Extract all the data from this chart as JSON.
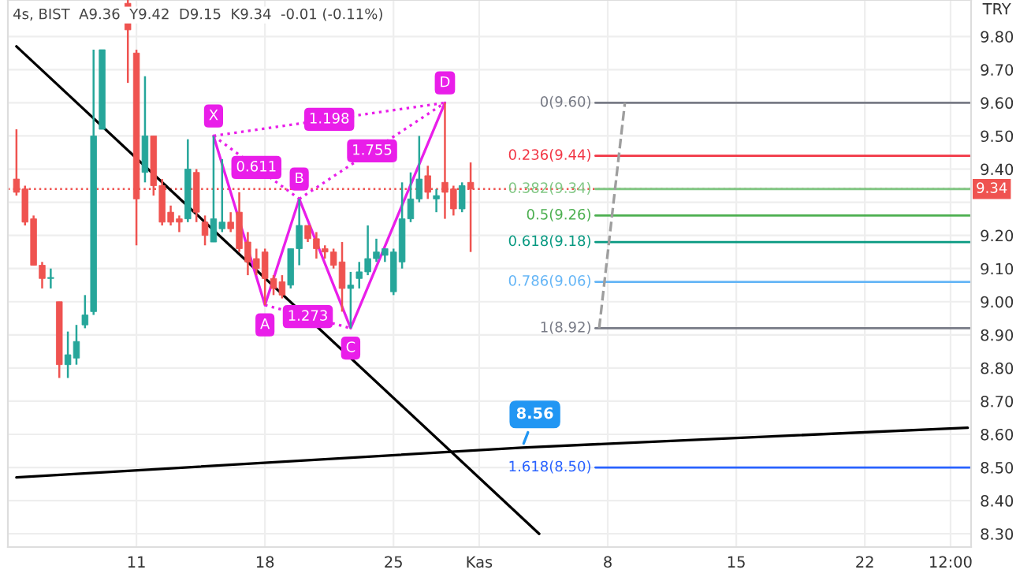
{
  "chart_data": {
    "type": "candlestick",
    "title": "4s, BIST  A9.36  Y9.42  D9.15  K9.34  -0.01 (-0.11%)",
    "ylabel": "TRY",
    "categories": [
      null,
      null,
      null,
      null,
      null,
      null,
      null,
      null,
      null,
      null,
      null,
      null,
      null,
      null,
      "11",
      null,
      null,
      null,
      null,
      null,
      null,
      null,
      null,
      null,
      null,
      null,
      null,
      null,
      null,
      "18",
      null,
      null,
      null,
      null,
      null,
      null,
      null,
      null,
      null,
      null,
      null,
      null,
      null,
      null,
      "25",
      null,
      null,
      null,
      null,
      null,
      null,
      null,
      null,
      null,
      "Kas",
      null,
      null,
      null,
      null,
      null,
      null,
      null,
      null,
      null,
      null,
      null,
      null,
      null,
      null,
      "8",
      null,
      null,
      null,
      null,
      null,
      null,
      null,
      null,
      null,
      null,
      null,
      null,
      null,
      null,
      "15",
      null,
      null,
      null,
      null,
      null,
      null,
      null,
      null,
      null,
      null,
      null,
      null,
      null,
      null,
      "22",
      null,
      null,
      null,
      null,
      null,
      null,
      null,
      null,
      null,
      "12:00",
      null,
      null
    ],
    "ohlc": [
      [
        9.37,
        9.52,
        9.32,
        9.33
      ],
      [
        9.34,
        9.35,
        9.23,
        9.24
      ],
      [
        9.25,
        9.26,
        9.11,
        9.11
      ],
      [
        9.11,
        9.12,
        9.04,
        9.07
      ],
      [
        9.07,
        9.1,
        9.04,
        9.07
      ],
      [
        9.0,
        9.0,
        8.77,
        8.81
      ],
      [
        8.81,
        8.91,
        8.77,
        8.84
      ],
      [
        8.83,
        8.93,
        8.81,
        8.88
      ],
      [
        8.93,
        9.02,
        8.92,
        8.96
      ],
      [
        8.97,
        9.76,
        8.96,
        9.5
      ],
      [
        9.52,
        9.76,
        9.52,
        9.76
      ],
      null,
      null,
      [
        9.9,
        9.91,
        9.66,
        9.82
      ],
      [
        9.75,
        9.76,
        9.17,
        9.31
      ],
      [
        9.39,
        9.68,
        9.36,
        9.5
      ],
      [
        9.5,
        9.5,
        9.32,
        9.35
      ],
      [
        9.35,
        9.37,
        9.23,
        9.24
      ],
      [
        9.27,
        9.29,
        9.23,
        9.24
      ],
      [
        9.25,
        9.26,
        9.21,
        9.24
      ],
      [
        9.25,
        9.49,
        9.24,
        9.4
      ],
      [
        9.39,
        9.4,
        9.24,
        9.27
      ],
      [
        9.24,
        9.26,
        9.17,
        9.2
      ],
      [
        9.18,
        9.5,
        9.18,
        9.25
      ],
      [
        9.22,
        9.43,
        9.21,
        9.24
      ],
      [
        9.24,
        9.27,
        9.21,
        9.22
      ],
      [
        9.27,
        9.33,
        9.15,
        9.16
      ],
      [
        9.18,
        9.21,
        9.08,
        9.12
      ],
      [
        9.13,
        9.16,
        9.08,
        9.1
      ],
      [
        9.15,
        9.16,
        8.99,
        9.07
      ],
      [
        9.07,
        9.08,
        9.02,
        9.04
      ],
      [
        9.06,
        9.08,
        9.01,
        9.02
      ],
      [
        9.05,
        9.16,
        9.04,
        9.16
      ],
      [
        9.16,
        9.31,
        9.11,
        9.23
      ],
      [
        9.23,
        9.23,
        9.18,
        9.19
      ],
      [
        9.19,
        9.21,
        9.13,
        9.16
      ],
      [
        9.16,
        9.17,
        9.13,
        9.15
      ],
      [
        9.15,
        9.16,
        9.1,
        9.11
      ],
      [
        9.12,
        9.18,
        8.97,
        9.04
      ],
      [
        9.04,
        9.09,
        8.92,
        9.05
      ],
      [
        9.07,
        9.12,
        9.04,
        9.09
      ],
      [
        9.09,
        9.23,
        9.08,
        9.13
      ],
      [
        9.13,
        9.19,
        9.12,
        9.15
      ],
      [
        9.14,
        9.16,
        9.12,
        9.16
      ],
      [
        9.03,
        9.16,
        9.02,
        9.15
      ],
      [
        9.12,
        9.36,
        9.1,
        9.25
      ],
      [
        9.25,
        9.39,
        9.24,
        9.31
      ],
      [
        9.31,
        9.5,
        9.3,
        9.37
      ],
      [
        9.38,
        9.41,
        9.31,
        9.33
      ],
      [
        9.31,
        9.34,
        9.27,
        9.32
      ],
      [
        9.36,
        9.6,
        9.25,
        9.33
      ],
      [
        9.34,
        9.35,
        9.26,
        9.28
      ],
      [
        9.28,
        9.36,
        9.27,
        9.35
      ],
      [
        9.36,
        9.42,
        9.15,
        9.34
      ],
      null,
      null,
      null,
      null,
      null,
      null,
      null,
      null,
      null,
      null,
      null,
      null,
      null,
      null,
      null,
      null,
      null,
      null,
      null,
      null,
      null,
      null,
      null,
      null,
      null,
      null,
      null,
      null,
      null,
      null,
      null,
      null,
      null,
      null,
      null,
      null,
      null,
      null,
      null,
      null,
      null,
      null,
      null,
      null,
      null,
      null,
      null,
      null,
      null,
      null,
      null,
      null,
      null,
      null,
      null,
      null,
      null,
      null
    ],
    "series": [
      {
        "type": "line",
        "color": "#000000",
        "values": [
          9.77,
          null,
          null,
          null,
          null,
          null,
          null,
          null,
          null,
          null,
          null,
          null,
          null,
          null,
          null,
          null,
          null,
          null,
          null,
          null,
          null,
          null,
          null,
          null,
          null,
          null,
          null,
          null,
          null,
          null,
          null,
          null,
          null,
          null,
          null,
          null,
          null,
          null,
          null,
          null,
          null,
          null,
          null,
          null,
          null,
          null,
          null,
          null,
          null,
          null,
          null,
          null,
          null,
          null,
          null,
          null,
          null,
          null,
          null,
          null,
          null,
          8.3,
          null,
          null,
          null,
          null,
          null,
          null,
          null,
          null,
          null,
          null,
          null,
          null,
          null,
          null,
          null,
          null,
          null,
          null,
          null,
          null,
          null,
          null,
          null,
          null,
          null,
          null,
          null,
          null,
          null,
          null,
          null,
          null,
          null,
          null,
          null,
          null,
          null,
          null,
          null,
          null,
          null,
          null,
          null,
          null,
          null,
          null,
          null,
          null,
          null,
          null
        ]
      },
      {
        "type": "line",
        "color": "#000000",
        "values": [
          8.47,
          null,
          null,
          null,
          null,
          null,
          null,
          null,
          null,
          null,
          null,
          null,
          null,
          null,
          null,
          null,
          null,
          null,
          null,
          null,
          null,
          null,
          null,
          null,
          null,
          null,
          null,
          null,
          null,
          null,
          null,
          null,
          null,
          null,
          null,
          null,
          null,
          null,
          null,
          null,
          null,
          null,
          null,
          null,
          null,
          null,
          null,
          null,
          null,
          null,
          null,
          null,
          null,
          null,
          null,
          null,
          null,
          null,
          null,
          8.56,
          null,
          null,
          null,
          null,
          null,
          null,
          null,
          null,
          null,
          null,
          null,
          null,
          null,
          null,
          null,
          null,
          null,
          null,
          null,
          null,
          null,
          null,
          null,
          null,
          null,
          null,
          null,
          null,
          null,
          null,
          null,
          null,
          null,
          null,
          null,
          null,
          null,
          null,
          null,
          null,
          null,
          null,
          null,
          null,
          null,
          null,
          null,
          null,
          null,
          null,
          null,
          8.62
        ],
        "value_labels": [
          null,
          null,
          null,
          null,
          null,
          null,
          null,
          null,
          null,
          null,
          null,
          null,
          null,
          null,
          null,
          null,
          null,
          null,
          null,
          null,
          null,
          null,
          null,
          null,
          null,
          null,
          null,
          null,
          null,
          null,
          null,
          null,
          null,
          null,
          null,
          null,
          null,
          null,
          null,
          null,
          null,
          null,
          null,
          null,
          null,
          null,
          null,
          null,
          null,
          null,
          null,
          null,
          null,
          null,
          null,
          null,
          null,
          null,
          null,
          "8.56",
          null,
          null,
          null,
          null,
          null,
          null,
          null,
          null,
          null,
          null,
          null,
          null,
          null,
          null,
          null,
          null,
          null,
          null,
          null,
          null,
          null,
          null,
          null,
          null,
          null,
          null,
          null,
          null,
          null,
          null,
          null,
          null,
          null,
          null,
          null,
          null,
          null,
          null,
          null,
          null,
          null,
          null,
          null,
          null,
          null,
          null,
          null,
          null,
          null,
          null,
          null,
          null
        ]
      },
      {
        "type": "line",
        "color": "#e91ee9",
        "values": [
          null,
          null,
          null,
          null,
          null,
          null,
          null,
          null,
          null,
          null,
          null,
          null,
          null,
          null,
          null,
          null,
          null,
          null,
          null,
          null,
          null,
          null,
          null,
          9.5,
          null,
          null,
          null,
          null,
          null,
          8.99,
          null,
          null,
          null,
          9.31,
          null,
          null,
          null,
          null,
          null,
          8.92,
          null,
          null,
          null,
          null,
          null,
          null,
          null,
          null,
          null,
          null,
          9.6,
          null,
          null,
          null,
          null,
          null,
          null,
          null,
          null,
          null,
          null,
          null,
          null,
          null,
          null,
          null,
          null,
          null,
          null,
          null,
          null,
          null,
          null,
          null,
          null,
          null,
          null,
          null,
          null,
          null,
          null,
          null,
          null,
          null,
          null,
          null,
          null,
          null,
          null,
          null,
          null,
          null,
          null,
          null,
          null,
          null,
          null,
          null,
          null,
          null,
          null,
          null,
          null,
          null,
          null,
          null,
          null,
          null,
          null,
          null,
          null,
          null
        ],
        "value_labels": [
          null,
          null,
          null,
          null,
          null,
          null,
          null,
          null,
          null,
          null,
          null,
          null,
          null,
          null,
          null,
          null,
          null,
          null,
          null,
          null,
          null,
          null,
          null,
          "X",
          null,
          null,
          null,
          null,
          null,
          "A",
          null,
          null,
          null,
          "B",
          null,
          null,
          null,
          null,
          null,
          "C",
          null,
          null,
          null,
          null,
          null,
          null,
          null,
          null,
          null,
          null,
          "D",
          null,
          null,
          null,
          null,
          null,
          null,
          null,
          null,
          null,
          null,
          null,
          null,
          null,
          null,
          null,
          null,
          null,
          null,
          null,
          null,
          null,
          null,
          null,
          null,
          null,
          null,
          null,
          null,
          null,
          null,
          null,
          null,
          null,
          null,
          null,
          null,
          null,
          null,
          null,
          null,
          null,
          null,
          null,
          null,
          null,
          null,
          null,
          null,
          null,
          null,
          null,
          null,
          null,
          null,
          null,
          null,
          null,
          null,
          null,
          null,
          null
        ]
      },
      {
        "type": "line",
        "color": "#e91ee9",
        "line_style": "dotted",
        "values": [
          null,
          null,
          null,
          null,
          null,
          null,
          null,
          null,
          null,
          null,
          null,
          null,
          null,
          null,
          null,
          null,
          null,
          null,
          null,
          null,
          null,
          null,
          null,
          9.5,
          null,
          null,
          null,
          null,
          null,
          null,
          null,
          null,
          null,
          9.31,
          null,
          null,
          null,
          null,
          null,
          null,
          null,
          null,
          null,
          null,
          null,
          null,
          null,
          null,
          null,
          null,
          null,
          null,
          null,
          null,
          null,
          null,
          null,
          null,
          null,
          null,
          null,
          null,
          null,
          null,
          null,
          null,
          null,
          null,
          null,
          null,
          null,
          null,
          null,
          null,
          null,
          null,
          null,
          null,
          null,
          null,
          null,
          null,
          null,
          null,
          null,
          null,
          null,
          null,
          null,
          null,
          null,
          null,
          null,
          null,
          null,
          null,
          null,
          null,
          null,
          null,
          null,
          null,
          null,
          null,
          null,
          null,
          null,
          null,
          null,
          null,
          null,
          null
        ]
      },
      {
        "type": "line",
        "color": "#e91ee9",
        "line_style": "dotted",
        "values": [
          null,
          null,
          null,
          null,
          null,
          null,
          null,
          null,
          null,
          null,
          null,
          null,
          null,
          null,
          null,
          null,
          null,
          null,
          null,
          null,
          null,
          null,
          null,
          null,
          null,
          null,
          null,
          null,
          null,
          8.99,
          null,
          null,
          null,
          null,
          null,
          null,
          null,
          null,
          null,
          8.92,
          null,
          null,
          null,
          null,
          null,
          null,
          null,
          null,
          null,
          null,
          null,
          null,
          null,
          null,
          null,
          null,
          null,
          null,
          null,
          null,
          null,
          null,
          null,
          null,
          null,
          null,
          null,
          null,
          null,
          null,
          null,
          null,
          null,
          null,
          null,
          null,
          null,
          null,
          null,
          null,
          null,
          null,
          null,
          null,
          null,
          null,
          null,
          null,
          null,
          null,
          null,
          null,
          null,
          null,
          null,
          null,
          null,
          null,
          null,
          null,
          null,
          null,
          null,
          null,
          null,
          null,
          null,
          null,
          null,
          null,
          null,
          null
        ]
      },
      {
        "type": "line",
        "color": "#e91ee9",
        "line_style": "dotted",
        "values": [
          null,
          null,
          null,
          null,
          null,
          null,
          null,
          null,
          null,
          null,
          null,
          null,
          null,
          null,
          null,
          null,
          null,
          null,
          null,
          null,
          null,
          null,
          null,
          null,
          null,
          null,
          null,
          null,
          null,
          null,
          null,
          null,
          null,
          9.31,
          null,
          null,
          null,
          null,
          null,
          null,
          null,
          null,
          null,
          null,
          null,
          null,
          null,
          null,
          null,
          null,
          9.6,
          null,
          null,
          null,
          null,
          null,
          null,
          null,
          null,
          null,
          null,
          null,
          null,
          null,
          null,
          null,
          null,
          null,
          null,
          null,
          null,
          null,
          null,
          null,
          null,
          null,
          null,
          null,
          null,
          null,
          null,
          null,
          null,
          null,
          null,
          null,
          null,
          null,
          null,
          null,
          null,
          null,
          null,
          null,
          null,
          null,
          null,
          null,
          null,
          null,
          null,
          null,
          null,
          null,
          null,
          null,
          null,
          null,
          null,
          null,
          null,
          null
        ]
      },
      {
        "type": "line",
        "color": "#e91ee9",
        "line_style": "dotted",
        "values": [
          null,
          null,
          null,
          null,
          null,
          null,
          null,
          null,
          null,
          null,
          null,
          null,
          null,
          null,
          null,
          null,
          null,
          null,
          null,
          null,
          null,
          null,
          null,
          9.5,
          null,
          null,
          null,
          null,
          null,
          null,
          null,
          null,
          null,
          null,
          null,
          null,
          null,
          null,
          null,
          null,
          null,
          null,
          null,
          null,
          null,
          null,
          null,
          null,
          null,
          null,
          9.6,
          null,
          null,
          null,
          null,
          null,
          null,
          null,
          null,
          null,
          null,
          null,
          null,
          null,
          null,
          null,
          null,
          null,
          null,
          null,
          null,
          null,
          null,
          null,
          null,
          null,
          null,
          null,
          null,
          null,
          null,
          null,
          null,
          null,
          null,
          null,
          null,
          null,
          null,
          null,
          null,
          null,
          null,
          null,
          null,
          null,
          null,
          null,
          null,
          null,
          null,
          null,
          null,
          null,
          null,
          null,
          null,
          null,
          null,
          null,
          null,
          null
        ]
      },
      {
        "type": "line",
        "color": "#9e9e9e",
        "line_style": "dashed",
        "values": [
          null,
          null,
          null,
          null,
          null,
          null,
          null,
          null,
          null,
          null,
          null,
          null,
          null,
          null,
          null,
          null,
          null,
          null,
          null,
          null,
          null,
          null,
          null,
          null,
          null,
          null,
          null,
          null,
          null,
          null,
          null,
          null,
          null,
          null,
          null,
          null,
          null,
          null,
          null,
          null,
          null,
          null,
          null,
          null,
          null,
          null,
          null,
          null,
          null,
          null,
          null,
          null,
          null,
          null,
          null,
          null,
          null,
          null,
          null,
          null,
          null,
          null,
          null,
          null,
          null,
          null,
          null,
          null,
          8.92,
          null,
          null,
          9.6,
          null,
          null,
          null,
          null,
          null,
          null,
          null,
          null,
          null,
          null,
          null,
          null,
          null,
          null,
          null,
          null,
          null,
          null,
          null,
          null,
          null,
          null,
          null,
          null,
          null,
          null,
          null,
          null,
          null,
          null,
          null,
          null,
          null,
          null,
          null,
          null,
          null,
          null,
          null,
          null
        ]
      }
    ],
    "annotations": [
      "0.611",
      "1.273",
      "1.755",
      "1.198"
    ],
    "ref_lines": [
      {
        "axis": "y",
        "value": 9.34,
        "label": "9.34",
        "color": "#ef5350",
        "line_style": "dotted"
      },
      {
        "axis": "y",
        "value": 9.6,
        "label": "0(9.60)",
        "color": "#787b86"
      },
      {
        "axis": "y",
        "value": 9.44,
        "label": "0.236(9.44)",
        "color": "#f23645"
      },
      {
        "axis": "y",
        "value": 9.34,
        "label": "0.382(9.34)",
        "color": "#81c784"
      },
      {
        "axis": "y",
        "value": 9.26,
        "label": "0.5(9.26)",
        "color": "#4caf50"
      },
      {
        "axis": "y",
        "value": 9.18,
        "label": "0.618(9.18)",
        "color": "#089981"
      },
      {
        "axis": "y",
        "value": 9.06,
        "label": "0.786(9.06)",
        "color": "#64b5f6"
      },
      {
        "axis": "y",
        "value": 8.92,
        "label": "1(8.92)",
        "color": "#787b86"
      },
      {
        "axis": "y",
        "value": 8.5,
        "label": "1.618(8.50)",
        "color": "#2962ff"
      }
    ],
    "ylim": [
      8.26,
      9.91
    ],
    "yticks": [
      {
        "value": 8.3,
        "label": "8.30"
      },
      {
        "value": 8.4,
        "label": "8.40"
      },
      {
        "value": 8.5,
        "label": "8.50"
      },
      {
        "value": 8.6,
        "label": "8.60"
      },
      {
        "value": 8.7,
        "label": "8.70"
      },
      {
        "value": 8.8,
        "label": "8.80"
      },
      {
        "value": 8.9,
        "label": "8.90"
      },
      {
        "value": 9.0,
        "label": "9.00"
      },
      {
        "value": 9.1,
        "label": "9.10"
      },
      {
        "value": 9.2,
        "label": "9.20"
      },
      {
        "value": 9.3,
        "label": null
      },
      {
        "value": 9.4,
        "label": "9.40"
      },
      {
        "value": 9.5,
        "label": "9.50"
      },
      {
        "value": 9.6,
        "label": "9.60"
      },
      {
        "value": 9.7,
        "label": "9.70"
      },
      {
        "value": 9.8,
        "label": "9.80"
      }
    ],
    "grid": true
  }
}
